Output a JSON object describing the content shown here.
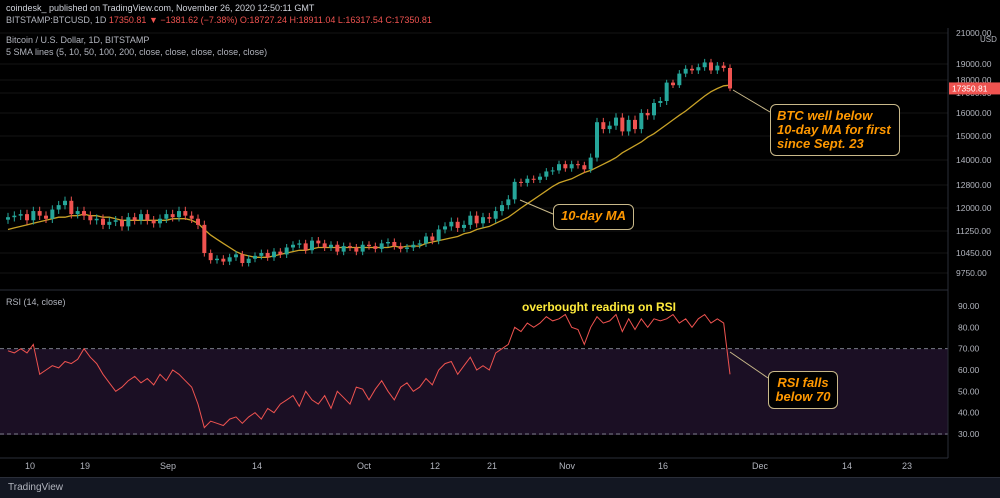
{
  "header": {
    "line1": "coindesk_ published on TradingView.com, November 26, 2020 12:50:11 GMT",
    "symbol": "BITSTAMP:BTCUSD, 1D",
    "price": "17350.81",
    "change": "▼ −1381.62 (−7.38%)",
    "ohlc": "O:18727.24 H:18911.04 L:16317.54 C:17350.81"
  },
  "legend": {
    "title": "Bitcoin / U.S. Dollar, 1D, BITSTAMP",
    "sma": "5 SMA lines (5, 10, 50, 100, 200, close, close, close, close, close)",
    "rsi": "RSI (14, close)"
  },
  "annotations": {
    "btc_callout": [
      "BTC well below",
      "10-day MA for first",
      "since Sept. 23"
    ],
    "ma_callout": "10-day MA",
    "rsi_title": "overbought reading on RSI",
    "rsi_callout": [
      "RSI falls",
      "below 70"
    ]
  },
  "footer": {
    "brand": "TradingView"
  },
  "colors": {
    "up": "#26a69a",
    "down": "#ef5350",
    "ma": "#c9a227",
    "rsi": "#ef5350",
    "callout_text": "#ff9800",
    "rsi_title": "#ffeb3b"
  },
  "chart_data": [
    {
      "type": "candlestick",
      "title": "Bitcoin / U.S. Dollar, 1D, BITSTAMP",
      "y_ticks": [
        9750,
        10450,
        11250,
        12000,
        12800,
        14000,
        15000,
        16000,
        17000,
        18000,
        19000,
        21000
      ],
      "y_unit": "USD",
      "last_price": "17350.81",
      "x_ticks": [
        "10",
        "19",
        "Sep",
        "14",
        "Oct",
        "12",
        "21",
        "Nov",
        "16",
        "Dec",
        "14",
        "23"
      ],
      "close_series": [
        11700,
        11750,
        11800,
        11600,
        11900,
        11750,
        11650,
        11950,
        12100,
        12250,
        11800,
        11900,
        11750,
        11600,
        11650,
        11450,
        11550,
        11600,
        11400,
        11700,
        11600,
        11800,
        11600,
        11500,
        11650,
        11800,
        11700,
        11900,
        11750,
        11650,
        11450,
        10450,
        10200,
        10250,
        10150,
        10300,
        10400,
        10100,
        10250,
        10350,
        10450,
        10300,
        10500,
        10400,
        10650,
        10750,
        10800,
        10550,
        10900,
        10800,
        10650,
        10750,
        10500,
        10700,
        10650,
        10500,
        10750,
        10700,
        10600,
        10800,
        10850,
        10700,
        10600,
        10650,
        10750,
        10800,
        11050,
        10900,
        11300,
        11400,
        11550,
        11350,
        11450,
        11750,
        11500,
        11700,
        11650,
        11900,
        12100,
        12300,
        12950,
        12900,
        13100,
        13050,
        13200,
        13450,
        13500,
        13800,
        13600,
        13800,
        13750,
        13550,
        14100,
        15600,
        15300,
        15450,
        15800,
        15200,
        15700,
        15300,
        16000,
        15900,
        16500,
        16600,
        17800,
        17600,
        18400,
        18700,
        18600,
        18800,
        19100,
        18600,
        18900,
        18750,
        17350
      ],
      "ma10": [
        11300,
        11350,
        11400,
        11450,
        11500,
        11550,
        11600,
        11650,
        11700,
        11700,
        11750,
        11750,
        11800,
        11750,
        11750,
        11700,
        11700,
        11650,
        11600,
        11600,
        11600,
        11600,
        11600,
        11600,
        11600,
        11600,
        11650,
        11650,
        11650,
        11600,
        11500,
        11300,
        11100,
        10950,
        10800,
        10650,
        10500,
        10400,
        10350,
        10300,
        10300,
        10300,
        10350,
        10400,
        10450,
        10500,
        10550,
        10550,
        10600,
        10650,
        10650,
        10650,
        10650,
        10650,
        10650,
        10650,
        10650,
        10650,
        10650,
        10650,
        10650,
        10700,
        10650,
        10700,
        10700,
        10700,
        10800,
        10850,
        10900,
        10950,
        11000,
        11050,
        11150,
        11200,
        11300,
        11350,
        11400,
        11500,
        11600,
        11700,
        11850,
        12000,
        12150,
        12300,
        12450,
        12600,
        12750,
        12900,
        13000,
        13100,
        13250,
        13400,
        13500,
        13650,
        13800,
        13950,
        14100,
        14300,
        14450,
        14600,
        14750,
        14950,
        15100,
        15300,
        15500,
        15700,
        15900,
        16100,
        16350,
        16600,
        16850,
        17100,
        17350,
        17550,
        17600
      ]
    },
    {
      "type": "line",
      "title": "RSI (14, close)",
      "y_ticks": [
        30,
        40,
        50,
        60,
        70,
        80,
        90
      ],
      "bands": [
        30,
        70
      ],
      "values": [
        69,
        68,
        70,
        68,
        72,
        58,
        60,
        62,
        61,
        64,
        63,
        65,
        70,
        66,
        63,
        58,
        54,
        50,
        52,
        55,
        57,
        54,
        56,
        53,
        58,
        55,
        60,
        58,
        55,
        52,
        44,
        33,
        36,
        35,
        34,
        37,
        38,
        35,
        38,
        40,
        37,
        42,
        40,
        44,
        46,
        48,
        43,
        50,
        46,
        44,
        48,
        42,
        50,
        47,
        44,
        52,
        51,
        46,
        51,
        55,
        50,
        46,
        52,
        54,
        50,
        52,
        56,
        53,
        60,
        63,
        64,
        58,
        62,
        66,
        60,
        62,
        60,
        68,
        70,
        72,
        80,
        78,
        82,
        80,
        82,
        85,
        83,
        84,
        86,
        80,
        79,
        72,
        80,
        85,
        82,
        83,
        86,
        78,
        84,
        79,
        84,
        80,
        84,
        83,
        84,
        86,
        82,
        84,
        80,
        84,
        86,
        82,
        84,
        82,
        58
      ]
    }
  ]
}
